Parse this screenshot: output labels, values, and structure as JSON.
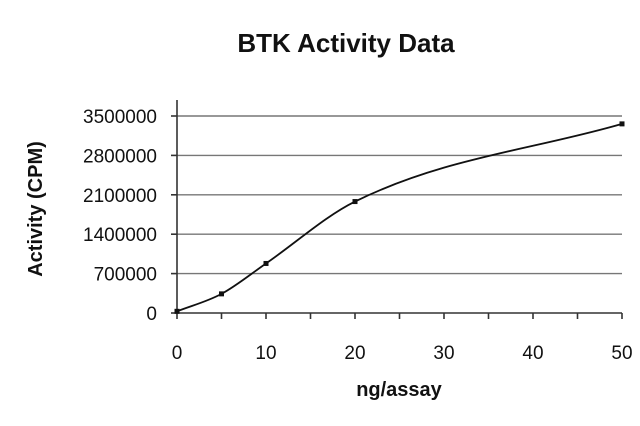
{
  "chart_data": {
    "type": "line",
    "title": "BTK Activity Data",
    "xlabel": "ng/assay",
    "ylabel": "Activity (CPM)",
    "x": [
      0,
      5,
      10,
      20,
      50
    ],
    "y": [
      30000,
      340000,
      880000,
      1980000,
      3360000
    ],
    "xlim": [
      0,
      50
    ],
    "ylim": [
      0,
      3500000
    ],
    "xticks": [
      0,
      10,
      20,
      30,
      40,
      50
    ],
    "yticks": [
      0,
      700000,
      1400000,
      2100000,
      2800000,
      3500000
    ],
    "xtick_labels": [
      "0",
      "10",
      "20",
      "30",
      "40",
      "50"
    ],
    "ytick_labels": [
      "0",
      "700000",
      "1400000",
      "2100000",
      "2800000",
      "3500000"
    ],
    "grid": "horizontal",
    "smoothed": true
  }
}
